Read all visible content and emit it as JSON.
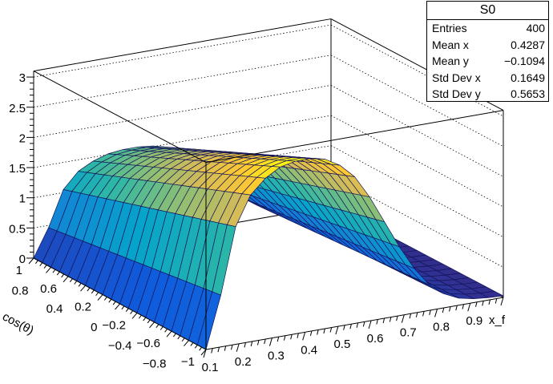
{
  "chart_data": {
    "type": "surface",
    "title": "",
    "xlabel": "x_f",
    "ylabel": "cos(θ)",
    "zlabel": "",
    "xlim": [
      0.1,
      1.0
    ],
    "ylim": [
      -1,
      1
    ],
    "zlim": [
      0,
      3.1
    ],
    "bins_x": 20,
    "bins_y": 20,
    "z_model": "z = x_profile[i] * y_factor[j]",
    "x_edges_profile": [
      0,
      0.66,
      1.5,
      1.87,
      2.05,
      2.16,
      2.2,
      2.2,
      2.16,
      2.05,
      1.87,
      1.58,
      1.23,
      0.88,
      0.57,
      0.33,
      0.18,
      0.09,
      0.05,
      0.03,
      0.02
    ],
    "y_factor_from_y_minus1_to_1": [
      1.3,
      1.27,
      1.24,
      1.21,
      1.18,
      1.15,
      1.12,
      1.09,
      1.06,
      1.03,
      1.0,
      0.97,
      0.94,
      0.91,
      0.88,
      0.85,
      0.82,
      0.79,
      0.76,
      0.73,
      0.7
    ],
    "x_ticks": [
      "0.1",
      "0.2",
      "0.3",
      "0.4",
      "0.5",
      "0.6",
      "0.7",
      "0.8",
      "0.9"
    ],
    "x_tick_values": [
      0.1,
      0.2,
      0.3,
      0.4,
      0.5,
      0.6,
      0.7,
      0.8,
      0.9
    ],
    "y_ticks": [
      "1",
      "0.8",
      "0.6",
      "0.4",
      "0.2",
      "0",
      "−0.2",
      "−0.4",
      "−0.6",
      "−0.8",
      "−1"
    ],
    "y_tick_values": [
      1,
      0.8,
      0.6,
      0.4,
      0.2,
      0,
      -0.2,
      -0.4,
      -0.6,
      -0.8,
      -1
    ],
    "z_ticks": [
      "0",
      "0.5",
      "1",
      "1.5",
      "2",
      "2.5",
      "3"
    ],
    "z_tick_values": [
      0,
      0.5,
      1,
      1.5,
      2,
      2.5,
      3
    ],
    "grid": true,
    "palette": [
      "#352a87",
      "#0f5cdd",
      "#1481d6",
      "#06a4ca",
      "#2eb7a4",
      "#87bf77",
      "#d1bb59",
      "#fec832",
      "#f9fb0e"
    ],
    "line_color": "#14145a"
  },
  "stats": {
    "title": "S0",
    "rows": [
      {
        "label": "Entries",
        "value": "400"
      },
      {
        "label": "Mean x",
        "value": "0.4287"
      },
      {
        "label": "Mean y",
        "value": "−0.1094"
      },
      {
        "label": "Std Dev x",
        "value": "0.1649"
      },
      {
        "label": "Std Dev y",
        "value": "0.5653"
      }
    ]
  }
}
